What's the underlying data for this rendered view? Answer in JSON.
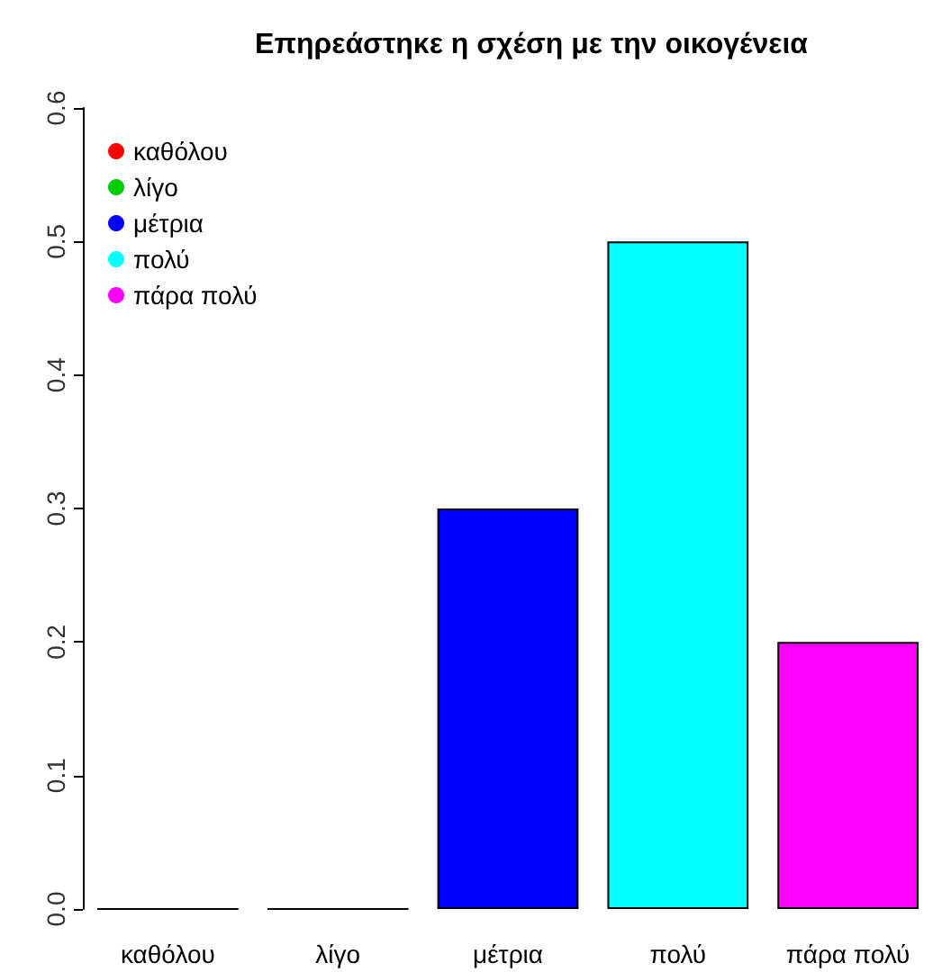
{
  "chart_data": {
    "type": "bar",
    "title": "Επηρεάστηκε η σχέση με την οικογένεια",
    "categories": [
      "καθόλου",
      "λίγο",
      "μέτρια",
      "πολύ",
      "πάρα πολύ"
    ],
    "series": [
      {
        "name": "καθόλου",
        "color": "#ff0000",
        "values": [
          0,
          null,
          null,
          null,
          null
        ]
      },
      {
        "name": "λίγο",
        "color": "#00cd00",
        "values": [
          null,
          0,
          null,
          null,
          null
        ]
      },
      {
        "name": "μέτρια",
        "color": "#0000ff",
        "values": [
          null,
          null,
          0.3,
          null,
          null
        ]
      },
      {
        "name": "πολύ",
        "color": "#00ffff",
        "values": [
          null,
          null,
          null,
          0.5,
          null
        ]
      },
      {
        "name": "πάρα πολύ",
        "color": "#ff00ff",
        "values": [
          null,
          null,
          null,
          null,
          0.2
        ]
      }
    ],
    "ylim": [
      0,
      0.6
    ],
    "yticks": [
      {
        "value": 0,
        "label": "0.0"
      },
      {
        "value": 0.1,
        "label": "0.1"
      },
      {
        "value": 0.2,
        "label": "0.2"
      },
      {
        "value": 0.3,
        "label": "0.3"
      },
      {
        "value": 0.4,
        "label": "0.4"
      },
      {
        "value": 0.5,
        "label": "0.5"
      },
      {
        "value": 0.6,
        "label": "0.6"
      }
    ],
    "grid": false,
    "legend": "top left"
  }
}
